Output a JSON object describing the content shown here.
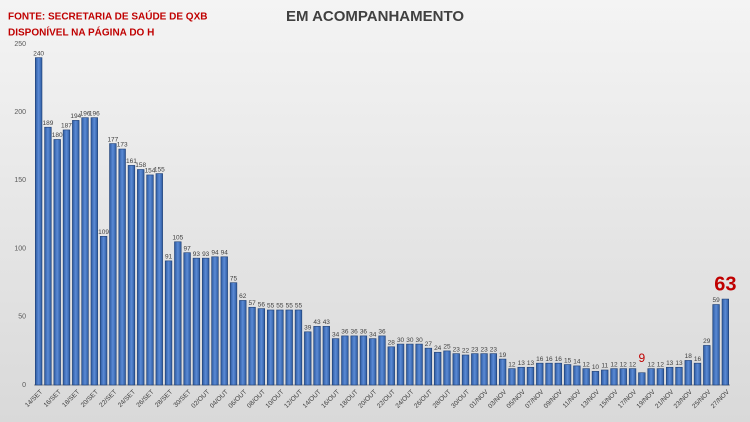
{
  "chart_data": {
    "type": "bar",
    "title": "EM ACOMPANHAMENTO",
    "source_lines": [
      "FONTE: SECRETARIA DE SAÚDE DE QXB",
      "DISPONÍVEL NA PÁGINA DO H"
    ],
    "categories": [
      "14/SET",
      null,
      "16/SET",
      null,
      "18/SET",
      null,
      "20/SET",
      null,
      "22/SET",
      null,
      "24/SET",
      null,
      "26/SET",
      null,
      "28/SET",
      null,
      "30/SET",
      null,
      "02/OUT",
      null,
      "04/OUT",
      null,
      "06/OUT",
      null,
      "08/OUT",
      null,
      "10/OUT",
      null,
      "12/OUT",
      null,
      "14/OUT",
      null,
      "16/OUT",
      null,
      "18/OUT",
      null,
      "20/OUT",
      null,
      "22/OUT",
      null,
      "24/OUT",
      null,
      "26/OUT",
      null,
      "28/OUT",
      null,
      "30/OUT",
      null,
      "01/NOV",
      null,
      "03/NOV",
      null,
      "05/NOV",
      null,
      "07/NOV",
      null,
      "09/NOV",
      null,
      "11/NOV",
      null,
      "13/NOV",
      null,
      "15/NOV",
      null,
      "17/NOV",
      null,
      "19/NOV",
      null,
      "21/NOV",
      null,
      "23/NOV",
      null,
      "25/NOV",
      null,
      "27/NOV"
    ],
    "values": [
      240,
      189,
      180,
      187,
      194,
      196,
      196,
      109,
      177,
      173,
      161,
      158,
      154,
      155,
      91,
      105,
      97,
      93,
      93,
      94,
      94,
      75,
      62,
      57,
      56,
      55,
      55,
      55,
      55,
      39,
      43,
      43,
      34,
      36,
      36,
      36,
      34,
      36,
      28,
      30,
      30,
      30,
      27,
      24,
      25,
      23,
      22,
      23,
      23,
      23,
      19,
      12,
      13,
      13,
      16,
      16,
      16,
      15,
      14,
      12,
      10,
      11,
      12,
      12,
      12,
      9,
      12,
      12,
      13,
      13,
      18,
      16,
      29,
      59,
      63
    ],
    "color": "#3a6bb5",
    "highlight_indices": [
      65,
      74
    ],
    "highlight_color": "#c00000",
    "ylim": [
      0,
      250
    ],
    "yticks": [
      0,
      50,
      100,
      150,
      200,
      250
    ],
    "grid": false
  }
}
